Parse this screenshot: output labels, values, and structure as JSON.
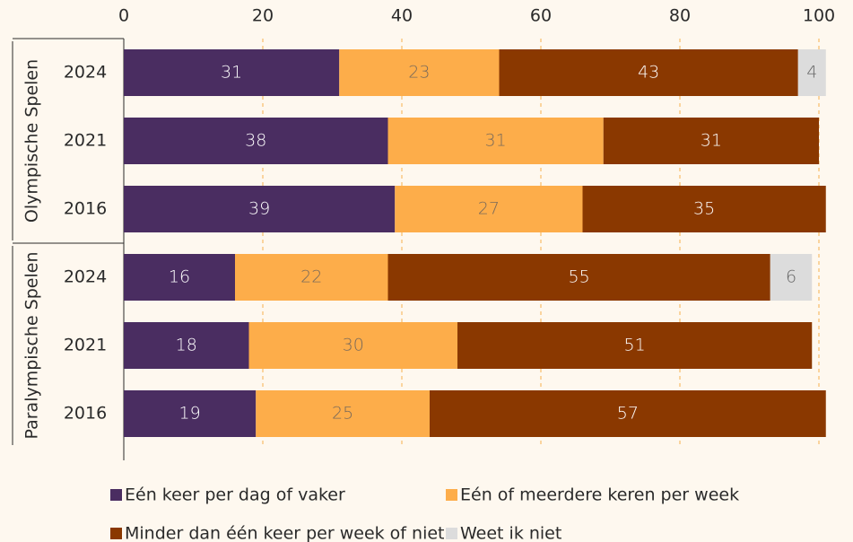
{
  "chart_data": {
    "type": "stacked_barh",
    "groups": [
      {
        "name": "Olympische Spelen",
        "categories": [
          "2024",
          "2021",
          "2016"
        ]
      },
      {
        "name": "Paralympische Spelen",
        "categories": [
          "2024",
          "2021",
          "2016"
        ]
      }
    ],
    "series": [
      {
        "name": "Eén keer per dag of vaker",
        "color": "#4a2d61",
        "values": [
          31,
          38,
          39,
          16,
          18,
          19
        ]
      },
      {
        "name": "Eén of meerdere keren per week",
        "color": "#fdad4a",
        "values": [
          23,
          31,
          27,
          22,
          30,
          25
        ]
      },
      {
        "name": "Minder dan één keer per week of niet",
        "color": "#8a3800",
        "values": [
          43,
          31,
          35,
          55,
          51,
          57
        ]
      },
      {
        "name": "Weet ik niet",
        "color": "#dcdcdc",
        "values": [
          4,
          null,
          null,
          6,
          null,
          null
        ]
      }
    ],
    "xlim": [
      0,
      100
    ],
    "xticks": [
      0,
      20,
      40,
      60,
      80,
      100
    ],
    "grid": true
  }
}
